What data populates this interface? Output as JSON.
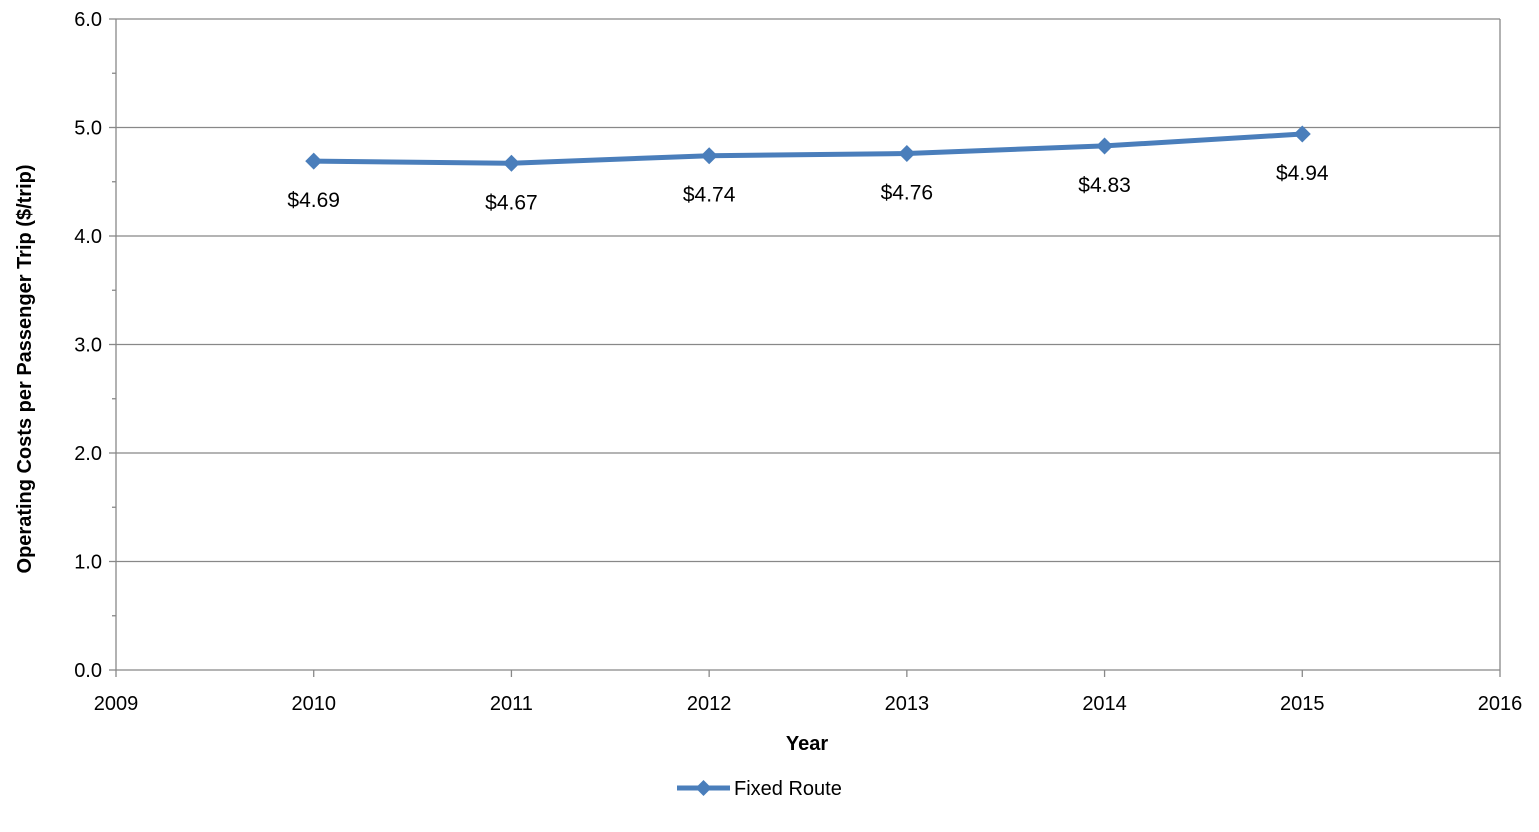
{
  "chart_data": {
    "type": "line",
    "title": "",
    "xlabel": "Year",
    "ylabel": "Operating Costs per Passenger Trip ($/trip)",
    "xlim": [
      2009,
      2016
    ],
    "ylim": [
      0,
      6
    ],
    "x_ticks": [
      "2009",
      "2010",
      "2011",
      "2012",
      "2013",
      "2014",
      "2015",
      "2016"
    ],
    "y_ticks": [
      "0.0",
      "1.0",
      "2.0",
      "3.0",
      "4.0",
      "5.0",
      "6.0"
    ],
    "grid": "horizontal major gridlines",
    "legend_position": "bottom-center",
    "colors": {
      "series": "#4A7EBB",
      "grid": "#888888",
      "axis": "#888888"
    },
    "series": [
      {
        "name": "Fixed Route",
        "marker": "diamond",
        "x": [
          2010,
          2011,
          2012,
          2013,
          2014,
          2015
        ],
        "values": [
          4.69,
          4.67,
          4.74,
          4.76,
          4.83,
          4.94
        ],
        "data_labels": [
          "$4.69",
          "$4.67",
          "$4.74",
          "$4.76",
          "$4.83",
          "$4.94"
        ]
      }
    ]
  }
}
